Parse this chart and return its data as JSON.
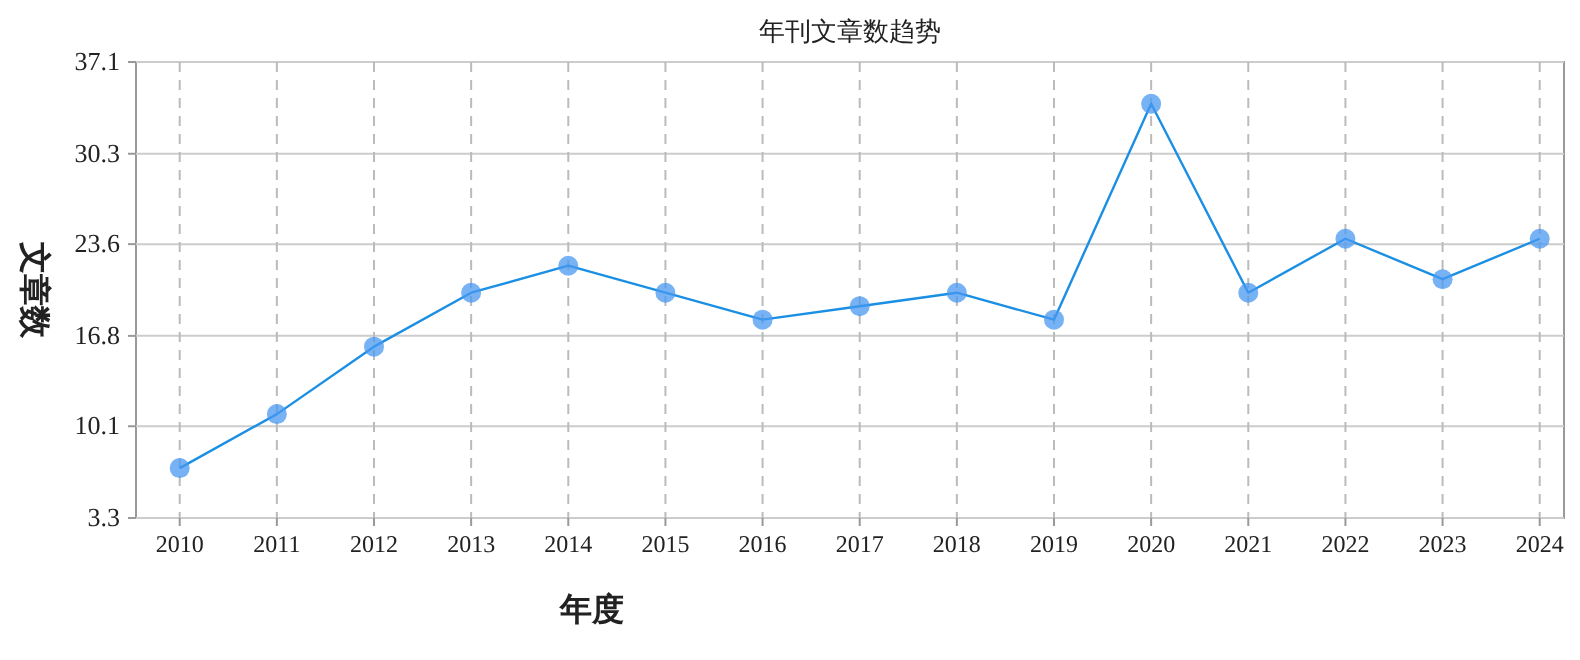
{
  "chart_data": {
    "type": "line",
    "title": "年刊文章数趋势",
    "xlabel": "年度",
    "ylabel": "文章数",
    "categories": [
      "2010",
      "2011",
      "2012",
      "2013",
      "2014",
      "2015",
      "2016",
      "2017",
      "2018",
      "2019",
      "2020",
      "2021",
      "2022",
      "2023",
      "2024"
    ],
    "series": [
      {
        "color": "#1a8fe3",
        "values": [
          7,
          11,
          16,
          20,
          22,
          20,
          18,
          19,
          20,
          18,
          34,
          20,
          24,
          21,
          24
        ]
      }
    ],
    "ylim": [
      3.3,
      37.1
    ],
    "yticks": [
      3.3,
      10.1,
      16.8,
      23.6,
      30.3,
      37.1
    ],
    "grid": true,
    "marker": "circle",
    "line_style": "solid"
  }
}
